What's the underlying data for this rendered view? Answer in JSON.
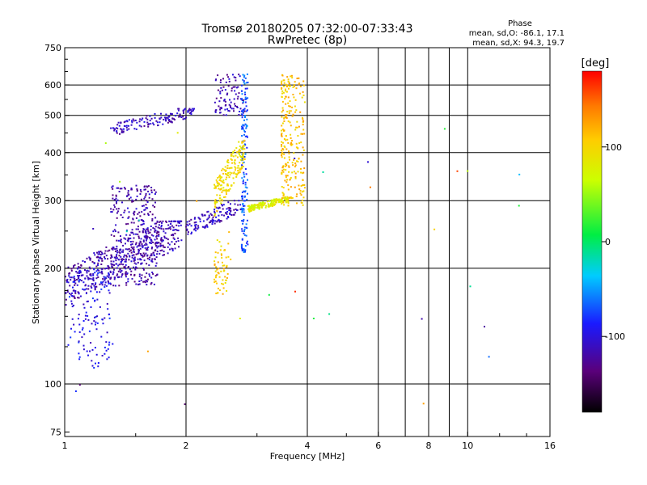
{
  "chart_data": {
    "type": "scatter",
    "title": "Tromsø 20180205 07:32:00-07:33:43",
    "subtitle": "RwPretec (8p)",
    "xlabel": "Frequency [MHz]",
    "ylabel": "Stationary phase Virtual Height [km]",
    "x_scale": "log",
    "y_scale": "log",
    "xlim": [
      1,
      16
    ],
    "ylim": [
      73,
      750
    ],
    "x_ticks": [
      1,
      2,
      4,
      6,
      8,
      10,
      16
    ],
    "x_tick_labels": [
      "1",
      "2",
      "4",
      "6",
      "8",
      "10",
      "16"
    ],
    "x_gridlines": [
      2,
      4,
      6,
      7,
      8,
      9,
      10
    ],
    "y_ticks": [
      75,
      100,
      200,
      300,
      400,
      500,
      600,
      750
    ],
    "y_tick_labels": [
      "75",
      "100",
      "200",
      "300",
      "400",
      "500",
      "600",
      "750"
    ],
    "y_gridlines": [
      100,
      200,
      300,
      400,
      500,
      600
    ],
    "stats": {
      "header": "Phase",
      "o_line": "mean, sd,O: -86.1, 17.1",
      "x_line": "mean, sd,X:  94.3, 19.7"
    },
    "colorbar": {
      "label": "[deg]",
      "min": -180,
      "max": 180,
      "ticks": [
        100,
        0,
        -100
      ],
      "tick_labels": [
        "100",
        "0",
        "-100"
      ]
    },
    "trace_groups": [
      {
        "name": "O-trace F1 layer low",
        "count": 480,
        "x": [
          1.0,
          1.95
        ],
        "y": [
          160,
          265
        ],
        "phase": -115,
        "shape": "band_rising"
      },
      {
        "name": "O-trace F1 cluster",
        "count": 320,
        "x": [
          1.3,
          1.7
        ],
        "y": [
          180,
          330
        ],
        "phase": -118,
        "shape": "box"
      },
      {
        "name": "O-trace low cusp",
        "count": 140,
        "x": [
          1.02,
          1.3
        ],
        "y": [
          110,
          200
        ],
        "phase": -95,
        "shape": "box"
      },
      {
        "name": "O-trace F2 rising",
        "count": 130,
        "x": [
          2.0,
          2.75
        ],
        "y": [
          240,
          300
        ],
        "phase": -110,
        "shape": "band_rising"
      },
      {
        "name": "O-trace upper branch",
        "count": 140,
        "x": [
          1.3,
          2.1
        ],
        "y": [
          440,
          520
        ],
        "phase": -112,
        "shape": "band_rising"
      },
      {
        "name": "O-trace high cusp",
        "count": 90,
        "x": [
          2.35,
          2.8
        ],
        "y": [
          500,
          640
        ],
        "phase": -115,
        "shape": "box"
      },
      {
        "name": "O-trace vertical F2",
        "count": 160,
        "x": [
          2.75,
          2.85
        ],
        "y": [
          220,
          640
        ],
        "phase": -70,
        "shape": "vertical"
      },
      {
        "name": "X-trace rising",
        "count": 180,
        "x": [
          2.35,
          2.8
        ],
        "y": [
          270,
          430
        ],
        "phase": 95,
        "shape": "band_rising"
      },
      {
        "name": "X-trace low branch",
        "count": 60,
        "x": [
          2.35,
          2.55
        ],
        "y": [
          170,
          240
        ],
        "phase": 105,
        "shape": "box"
      },
      {
        "name": "X-trace F2 base",
        "count": 170,
        "x": [
          2.85,
          3.6
        ],
        "y": [
          280,
          305
        ],
        "phase": 80,
        "shape": "band_rising"
      },
      {
        "name": "X-trace vertical cusp",
        "count": 260,
        "x": [
          3.45,
          3.95
        ],
        "y": [
          290,
          640
        ],
        "phase": 110,
        "shape": "vertical"
      },
      {
        "name": "Scattered noise",
        "count": 35,
        "x": [
          1.0,
          14.0
        ],
        "y": [
          76,
          640
        ],
        "phase": 0,
        "shape": "box"
      }
    ]
  }
}
